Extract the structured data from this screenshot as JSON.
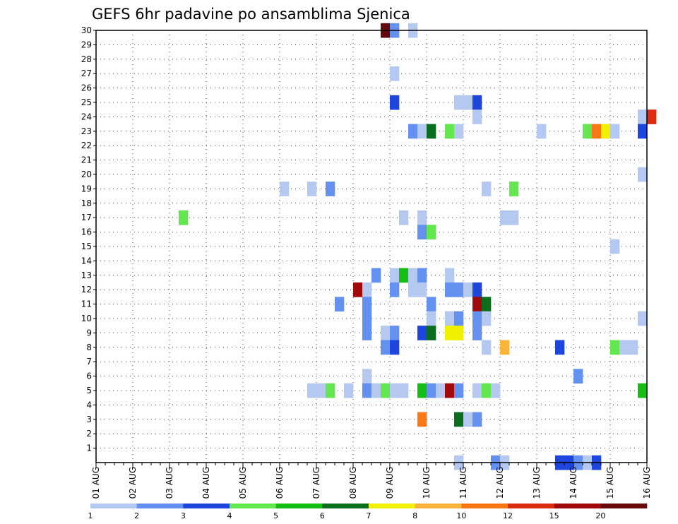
{
  "chart_data": {
    "type": "heatmap",
    "title": "GEFS 6hr padavine po ansamblima Sjenica",
    "xlabel": "",
    "ylabel": "",
    "x_ticks": [
      "01 AUG",
      "02 AUG",
      "03 AUG",
      "04 AUG",
      "05 AUG",
      "06 AUG",
      "07 AUG",
      "08 AUG",
      "09 AUG",
      "10 AUG",
      "11 AUG",
      "12 AUG",
      "13 AUG",
      "14 AUG",
      "15 AUG",
      "16 AUG"
    ],
    "y_ticks": [
      "1",
      "2",
      "3",
      "4",
      "5",
      "6",
      "7",
      "8",
      "9",
      "10",
      "11",
      "12",
      "13",
      "14",
      "15",
      "16",
      "17",
      "18",
      "19",
      "20",
      "21",
      "22",
      "23",
      "24",
      "25",
      "26",
      "27",
      "28",
      "29",
      "30"
    ],
    "x_range": [
      "01 AUG 00z",
      "16 AUG 00z"
    ],
    "y_range": [
      0,
      30
    ],
    "time_step_hours": 6,
    "grid": true,
    "colorbar": {
      "position": "bottom",
      "labels": [
        "1",
        "2",
        "3",
        "4",
        "5",
        "6",
        "7",
        "8",
        "10",
        "12",
        "15",
        "20"
      ],
      "colors": [
        "#b4c8f0",
        "#6490f0",
        "#1e46dc",
        "#64e650",
        "#14be14",
        "#0a6e1e",
        "#f0f000",
        "#fab43c",
        "#fa7814",
        "#dc2d14",
        "#a00a0a",
        "#640a0a"
      ]
    },
    "cells_note": "Each cell: [time_index (6-hour steps from 01 AUG 00z), member (0-30), precipitation category index (0 = 1-2 mm, 11 = >20 mm)]",
    "cells": [
      [
        31,
        30,
        11
      ],
      [
        32,
        30,
        1
      ],
      [
        34,
        30,
        0
      ],
      [
        32,
        27,
        0
      ],
      [
        32,
        25,
        2
      ],
      [
        39,
        25,
        0
      ],
      [
        40,
        25,
        0
      ],
      [
        41,
        25,
        2
      ],
      [
        41,
        24,
        0
      ],
      [
        59,
        24,
        0
      ],
      [
        60,
        24,
        9
      ],
      [
        34,
        23,
        1
      ],
      [
        35,
        23,
        0
      ],
      [
        36,
        23,
        5
      ],
      [
        38,
        23,
        3
      ],
      [
        39,
        23,
        0
      ],
      [
        48,
        23,
        0
      ],
      [
        53,
        23,
        3
      ],
      [
        54,
        23,
        8
      ],
      [
        55,
        23,
        6
      ],
      [
        56,
        23,
        0
      ],
      [
        59,
        23,
        2
      ],
      [
        59,
        20,
        0
      ],
      [
        20,
        19,
        0
      ],
      [
        23,
        19,
        0
      ],
      [
        25,
        19,
        1
      ],
      [
        42,
        19,
        0
      ],
      [
        45,
        19,
        3
      ],
      [
        9,
        17,
        3
      ],
      [
        33,
        17,
        0
      ],
      [
        35,
        17,
        0
      ],
      [
        44,
        17,
        0
      ],
      [
        45,
        17,
        0
      ],
      [
        35,
        16,
        1
      ],
      [
        36,
        16,
        3
      ],
      [
        56,
        15,
        0
      ],
      [
        30,
        13,
        1
      ],
      [
        32,
        13,
        0
      ],
      [
        33,
        13,
        4
      ],
      [
        34,
        13,
        0
      ],
      [
        35,
        13,
        1
      ],
      [
        38,
        13,
        0
      ],
      [
        28,
        12,
        10
      ],
      [
        29,
        12,
        0
      ],
      [
        32,
        12,
        1
      ],
      [
        34,
        12,
        0
      ],
      [
        35,
        12,
        0
      ],
      [
        38,
        12,
        1
      ],
      [
        39,
        12,
        1
      ],
      [
        40,
        12,
        0
      ],
      [
        41,
        12,
        2
      ],
      [
        26,
        11,
        1
      ],
      [
        29,
        11,
        1
      ],
      [
        36,
        11,
        1
      ],
      [
        41,
        11,
        10
      ],
      [
        42,
        11,
        5
      ],
      [
        29,
        10,
        1
      ],
      [
        36,
        10,
        0
      ],
      [
        38,
        10,
        0
      ],
      [
        39,
        10,
        1
      ],
      [
        41,
        10,
        1
      ],
      [
        42,
        10,
        0
      ],
      [
        59,
        10,
        0
      ],
      [
        29,
        9,
        1
      ],
      [
        31,
        9,
        0
      ],
      [
        32,
        9,
        1
      ],
      [
        35,
        9,
        2
      ],
      [
        36,
        9,
        5
      ],
      [
        38,
        9,
        6
      ],
      [
        39,
        9,
        6
      ],
      [
        41,
        9,
        1
      ],
      [
        31,
        8,
        1
      ],
      [
        32,
        8,
        2
      ],
      [
        42,
        8,
        0
      ],
      [
        44,
        8,
        7
      ],
      [
        50,
        8,
        2
      ],
      [
        56,
        8,
        3
      ],
      [
        57,
        8,
        0
      ],
      [
        58,
        8,
        0
      ],
      [
        29,
        6,
        0
      ],
      [
        52,
        6,
        1
      ],
      [
        23,
        5,
        0
      ],
      [
        24,
        5,
        0
      ],
      [
        25,
        5,
        3
      ],
      [
        27,
        5,
        0
      ],
      [
        29,
        5,
        1
      ],
      [
        30,
        5,
        0
      ],
      [
        31,
        5,
        3
      ],
      [
        32,
        5,
        0
      ],
      [
        33,
        5,
        0
      ],
      [
        35,
        5,
        4
      ],
      [
        36,
        5,
        1
      ],
      [
        37,
        5,
        0
      ],
      [
        38,
        5,
        10
      ],
      [
        39,
        5,
        1
      ],
      [
        41,
        5,
        0
      ],
      [
        42,
        5,
        3
      ],
      [
        43,
        5,
        0
      ],
      [
        59,
        5,
        4
      ],
      [
        35,
        3,
        8
      ],
      [
        39,
        3,
        5
      ],
      [
        40,
        3,
        0
      ],
      [
        41,
        3,
        1
      ],
      [
        39,
        0,
        0
      ],
      [
        43,
        0,
        1
      ],
      [
        44,
        0,
        0
      ],
      [
        50,
        0,
        2
      ],
      [
        51,
        0,
        2
      ],
      [
        52,
        0,
        1
      ],
      [
        53,
        0,
        0
      ],
      [
        54,
        0,
        2
      ]
    ]
  }
}
